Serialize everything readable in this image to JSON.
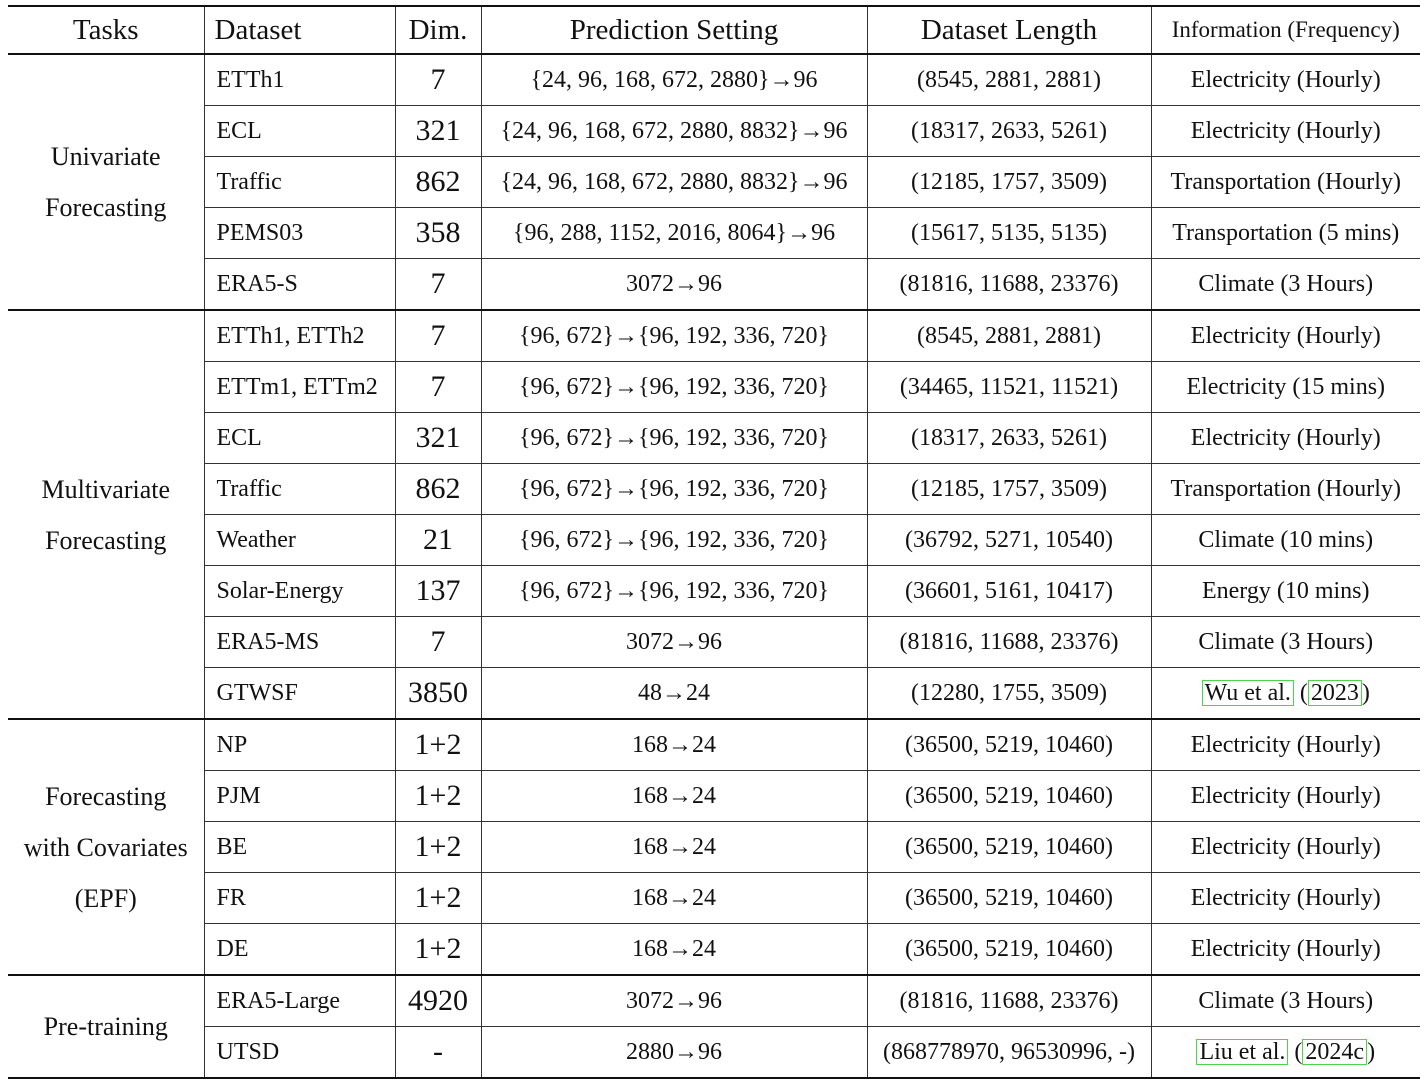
{
  "headers": {
    "tasks": "Tasks",
    "dataset": "Dataset",
    "dim": "Dim.",
    "prediction": "Prediction Setting",
    "length": "Dataset Length",
    "info": "Information (Frequency)"
  },
  "groups": [
    {
      "lines": [
        "Univariate",
        "Forecasting"
      ]
    },
    {
      "lines": [
        "Multivariate",
        "Forecasting"
      ]
    },
    {
      "lines": [
        "Forecasting",
        "with Covariates",
        "(EPF)"
      ]
    },
    {
      "lines": [
        "Pre-training"
      ]
    }
  ],
  "rows": [
    {
      "dataset": "ETTh1",
      "dim": "7",
      "pred": "{24, 96, 168, 672, 2880}→96",
      "len": "(8545, 2881, 2881)",
      "info": "Electricity (Hourly)"
    },
    {
      "dataset": "ECL",
      "dim": "321",
      "pred": "{24, 96, 168, 672, 2880, 8832}→96",
      "len": "(18317, 2633, 5261)",
      "info": "Electricity (Hourly)"
    },
    {
      "dataset": "Traffic",
      "dim": "862",
      "pred": "{24, 96, 168, 672, 2880, 8832}→96",
      "len": "(12185, 1757, 3509)",
      "info": "Transportation (Hourly)"
    },
    {
      "dataset": "PEMS03",
      "dim": "358",
      "pred": "{96, 288, 1152, 2016, 8064}→96",
      "len": "(15617, 5135, 5135)",
      "info": "Transportation (5 mins)"
    },
    {
      "dataset": "ERA5-S",
      "dim": "7",
      "pred": "3072→96",
      "len": "(81816, 11688, 23376)",
      "info": "Climate (3 Hours)"
    },
    {
      "dataset": "ETTh1, ETTh2",
      "dim": "7",
      "pred": "{96, 672}→{96, 192, 336, 720}",
      "len": "(8545, 2881, 2881)",
      "info": "Electricity (Hourly)"
    },
    {
      "dataset": "ETTm1, ETTm2",
      "dim": "7",
      "pred": "{96, 672}→{96, 192, 336, 720}",
      "len": "(34465, 11521, 11521)",
      "info": "Electricity (15 mins)"
    },
    {
      "dataset": "ECL",
      "dim": "321",
      "pred": "{96, 672}→{96, 192, 336, 720}",
      "len": "(18317, 2633, 5261)",
      "info": "Electricity (Hourly)"
    },
    {
      "dataset": "Traffic",
      "dim": "862",
      "pred": "{96, 672}→{96, 192, 336, 720}",
      "len": "(12185, 1757, 3509)",
      "info": "Transportation (Hourly)"
    },
    {
      "dataset": "Weather",
      "dim": "21",
      "pred": "{96, 672}→{96, 192, 336, 720}",
      "len": "(36792, 5271, 10540)",
      "info": "Climate (10 mins)"
    },
    {
      "dataset": "Solar-Energy",
      "dim": "137",
      "pred": "{96, 672}→{96, 192, 336, 720}",
      "len": "(36601, 5161, 10417)",
      "info": "Energy (10 mins)"
    },
    {
      "dataset": "ERA5-MS",
      "dim": "7",
      "pred": "3072→96",
      "len": "(81816, 11688, 23376)",
      "info": "Climate (3 Hours)"
    },
    {
      "dataset": "GTWSF",
      "dim": "3850",
      "pred": "48→24",
      "len": "(12280, 1755, 3509)",
      "info_cite": {
        "author": "Wu et al.",
        "year": "2023"
      }
    },
    {
      "dataset": "NP",
      "dim": "1+2",
      "pred": "168→24",
      "len": "(36500, 5219, 10460)",
      "info": "Electricity (Hourly)"
    },
    {
      "dataset": "PJM",
      "dim": "1+2",
      "pred": "168→24",
      "len": "(36500, 5219, 10460)",
      "info": "Electricity (Hourly)"
    },
    {
      "dataset": "BE",
      "dim": "1+2",
      "pred": "168→24",
      "len": "(36500, 5219, 10460)",
      "info": "Electricity (Hourly)"
    },
    {
      "dataset": "FR",
      "dim": "1+2",
      "pred": "168→24",
      "len": "(36500, 5219, 10460)",
      "info": "Electricity (Hourly)"
    },
    {
      "dataset": "DE",
      "dim": "1+2",
      "pred": "168→24",
      "len": "(36500, 5219, 10460)",
      "info": "Electricity (Hourly)"
    },
    {
      "dataset": "ERA5-Large",
      "dim": "4920",
      "pred": "3072→96",
      "len": "(81816, 11688, 23376)",
      "info": "Climate (3 Hours)"
    },
    {
      "dataset": "UTSD",
      "dim": "-",
      "pred": "2880→96",
      "len": "(868778970, 96530996, -)",
      "info_cite": {
        "author": "Liu et al.",
        "year": "2024c"
      }
    }
  ]
}
